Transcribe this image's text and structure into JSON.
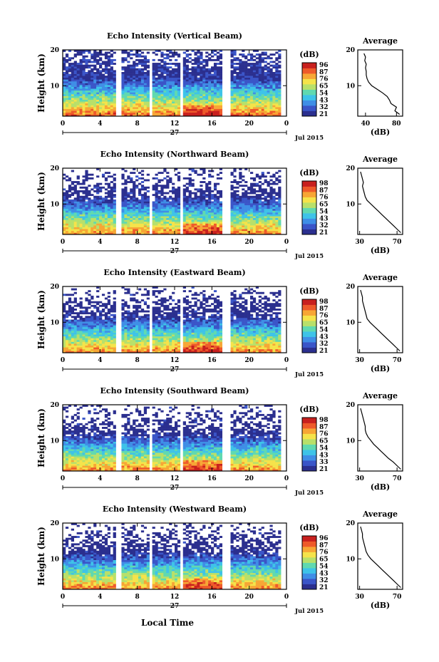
{
  "figure": {
    "xlabel": "Local Time",
    "x_ticks": [
      "0",
      "4",
      "8",
      "12",
      "16",
      "20",
      "0"
    ],
    "day_label": "27",
    "month_label": "Jul 2015",
    "colorbar": {
      "unit": "(dB)",
      "ticks_vertical": [
        "96",
        "87",
        "76",
        "65",
        "54",
        "43",
        "32",
        "21"
      ],
      "ticks_northward": [
        "98",
        "87",
        "76",
        "65",
        "54",
        "43",
        "32",
        "21"
      ],
      "ticks_eastward": [
        "98",
        "87",
        "76",
        "65",
        "54",
        "43",
        "32",
        "21"
      ],
      "ticks_southward": [
        "98",
        "87",
        "76",
        "65",
        "54",
        "43",
        "33",
        "21"
      ],
      "ticks_westward": [
        "96",
        "87",
        "76",
        "65",
        "54",
        "43",
        "32",
        "21"
      ],
      "colors": [
        "#2b2f8f",
        "#3a55c8",
        "#3f8ee6",
        "#3ec3e8",
        "#60d9b0",
        "#b8e06a",
        "#f5e34a",
        "#f7a635",
        "#ee5a2a",
        "#c8201e"
      ]
    }
  },
  "chart_data": [
    {
      "type": "heatmap",
      "title": "Echo Intensity (Vertical Beam)",
      "xlabel": "",
      "ylabel": "Height (km)",
      "x_range_hours": [
        0,
        24
      ],
      "ylim_km": [
        1.5,
        20
      ],
      "y_ticks": [
        "20",
        "10"
      ],
      "data_gaps_hours": [
        [
          5.8,
          6.2
        ],
        [
          9.3,
          9.6
        ],
        [
          12.7,
          13.0
        ],
        [
          17.2,
          18.0
        ],
        [
          23.3,
          24.0
        ]
      ],
      "profile": {
        "title": "Average",
        "xlabel": "(dB)",
        "x_ticks": [
          "40",
          "80"
        ],
        "xlim": [
          30,
          88
        ],
        "height_km": [
          2,
          3,
          4,
          5,
          6,
          7,
          8,
          9,
          10,
          11,
          12,
          13,
          14,
          15,
          16,
          17,
          18,
          19
        ],
        "avg_db": [
          84,
          78,
          80,
          73,
          71,
          68,
          62,
          55,
          48,
          44,
          42,
          41,
          41,
          40,
          41,
          39,
          40,
          38
        ]
      }
    },
    {
      "type": "heatmap",
      "title": "Echo Intensity (Northward Beam)",
      "xlabel": "",
      "ylabel": "Height (km)",
      "x_range_hours": [
        0,
        24
      ],
      "ylim_km": [
        1.5,
        20
      ],
      "y_ticks": [
        "20",
        "10"
      ],
      "data_gaps_hours": [
        [
          5.8,
          6.2
        ],
        [
          9.3,
          9.6
        ],
        [
          12.7,
          13.0
        ],
        [
          17.2,
          18.0
        ],
        [
          23.3,
          24.0
        ]
      ],
      "profile": {
        "title": "Average",
        "xlabel": "(dB)",
        "x_ticks": [
          "30",
          "70"
        ],
        "xlim": [
          28,
          76
        ],
        "height_km": [
          2,
          3,
          4,
          5,
          6,
          7,
          8,
          9,
          10,
          11,
          12,
          13,
          14,
          15,
          16,
          17,
          18,
          19
        ],
        "avg_db": [
          74,
          70,
          66,
          62,
          58,
          54,
          50,
          46,
          42,
          38,
          36,
          35,
          34,
          33,
          34,
          33,
          32,
          31
        ]
      }
    },
    {
      "type": "heatmap",
      "title": "Echo Intensity (Eastward Beam)",
      "xlabel": "",
      "ylabel": "Height (km)",
      "x_range_hours": [
        0,
        24
      ],
      "ylim_km": [
        1.5,
        20
      ],
      "y_ticks": [
        "20",
        "10"
      ],
      "data_gaps_hours": [
        [
          5.8,
          6.2
        ],
        [
          9.3,
          9.6
        ],
        [
          12.7,
          13.0
        ],
        [
          17.2,
          18.0
        ],
        [
          23.3,
          24.0
        ]
      ],
      "profile": {
        "title": "Average",
        "xlabel": "(dB)",
        "x_ticks": [
          "30",
          "70"
        ],
        "xlim": [
          28,
          76
        ],
        "height_km": [
          2,
          3,
          4,
          5,
          6,
          7,
          8,
          9,
          10,
          11,
          12,
          13,
          14,
          15,
          16,
          17,
          18,
          19
        ],
        "avg_db": [
          73,
          69,
          65,
          61,
          57,
          53,
          49,
          45,
          41,
          38,
          37,
          36,
          35,
          34,
          33,
          33,
          32,
          31
        ]
      }
    },
    {
      "type": "heatmap",
      "title": "Echo Intensity (Southward Beam)",
      "xlabel": "",
      "ylabel": "Height (km)",
      "x_range_hours": [
        0,
        24
      ],
      "ylim_km": [
        1.5,
        20
      ],
      "y_ticks": [
        "20",
        "10"
      ],
      "data_gaps_hours": [
        [
          5.8,
          6.2
        ],
        [
          9.3,
          9.6
        ],
        [
          12.7,
          13.0
        ],
        [
          17.2,
          18.0
        ],
        [
          23.3,
          24.0
        ]
      ],
      "profile": {
        "title": "Average",
        "xlabel": "(dB)",
        "x_ticks": [
          "30",
          "70"
        ],
        "xlim": [
          28,
          76
        ],
        "height_km": [
          2,
          3,
          4,
          5,
          6,
          7,
          8,
          9,
          10,
          11,
          12,
          13,
          14,
          15,
          16,
          17,
          18,
          19
        ],
        "avg_db": [
          74,
          70,
          66,
          61,
          57,
          53,
          49,
          45,
          42,
          39,
          37,
          36,
          36,
          35,
          34,
          33,
          32,
          31
        ]
      }
    },
    {
      "type": "heatmap",
      "title": "Echo Intensity (Westward Beam)",
      "xlabel": "Local Time",
      "ylabel": "Height (km)",
      "x_range_hours": [
        0,
        24
      ],
      "ylim_km": [
        1.5,
        20
      ],
      "y_ticks": [
        "20",
        "10"
      ],
      "data_gaps_hours": [
        [
          5.8,
          6.2
        ],
        [
          9.3,
          9.6
        ],
        [
          12.7,
          13.0
        ],
        [
          17.2,
          18.0
        ],
        [
          23.3,
          24.0
        ]
      ],
      "profile": {
        "title": "Average",
        "xlabel": "(dB)",
        "x_ticks": [
          "30",
          "70"
        ],
        "xlim": [
          28,
          76
        ],
        "height_km": [
          2,
          3,
          4,
          5,
          6,
          7,
          8,
          9,
          10,
          11,
          12,
          13,
          14,
          15,
          16,
          17,
          18,
          19
        ],
        "avg_db": [
          74,
          70,
          66,
          62,
          58,
          54,
          50,
          46,
          42,
          39,
          37,
          36,
          35,
          34,
          33,
          33,
          32,
          31
        ]
      }
    }
  ]
}
